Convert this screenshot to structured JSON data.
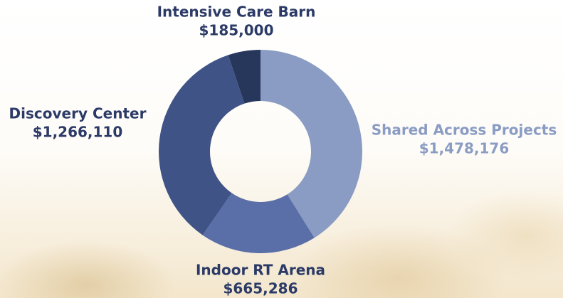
{
  "chart_data": {
    "type": "pie",
    "categories": [
      "Shared Across Projects",
      "Indoor RT Arena",
      "Discovery Center",
      "Intensive Care Barn"
    ],
    "values": [
      1478176,
      665286,
      1266110,
      185000
    ],
    "value_labels": [
      "$1,478,176",
      "$665,286",
      "$1,266,110",
      "$185,000"
    ],
    "colors": [
      "#8a9cc3",
      "#5a6ea8",
      "#405387",
      "#27375c"
    ]
  }
}
